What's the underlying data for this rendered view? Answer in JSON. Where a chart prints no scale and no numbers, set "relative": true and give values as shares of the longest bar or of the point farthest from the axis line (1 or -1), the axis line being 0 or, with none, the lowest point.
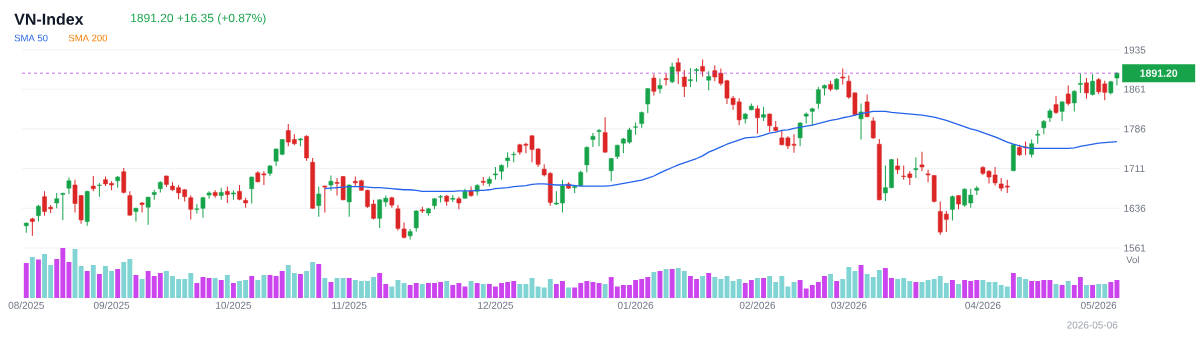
{
  "chart_data": [
    {
      "type": "candlestick",
      "title": "VN-Index",
      "subtitle": "1891.20 +16.35 (+0.87%)",
      "categories": [
        null,
        null,
        null,
        null,
        null,
        null,
        null,
        null,
        null,
        null,
        null,
        null,
        null,
        null,
        null,
        null,
        null,
        null,
        null,
        null,
        null,
        null,
        null,
        null,
        null,
        null,
        null,
        null,
        null,
        null,
        null,
        null,
        null,
        null,
        null,
        null,
        null,
        null,
        null,
        null,
        null,
        null,
        null,
        null,
        null,
        null,
        null,
        null,
        null,
        null,
        null,
        null,
        null,
        null,
        null,
        null,
        null,
        null,
        null,
        null,
        null,
        null,
        null,
        null,
        null,
        null,
        null,
        null,
        null,
        null,
        null,
        null,
        null,
        null,
        null,
        null,
        null,
        null,
        null,
        null,
        null,
        null,
        null,
        null,
        null,
        null,
        null,
        null,
        null,
        null,
        null,
        null,
        null,
        null,
        null,
        null,
        null,
        null,
        null,
        null,
        null,
        null,
        null,
        null,
        null,
        null,
        null,
        null,
        null,
        null,
        null,
        null,
        null,
        null,
        null,
        null,
        null,
        null,
        null,
        null,
        null,
        null,
        null,
        null,
        null,
        null,
        null,
        null,
        null,
        null,
        null,
        null,
        null,
        null,
        null,
        null,
        null,
        null,
        null,
        null,
        null,
        null,
        null,
        null,
        null,
        null,
        null,
        null,
        null,
        null,
        null,
        null,
        null,
        null,
        null,
        null,
        null,
        null,
        null,
        null,
        null,
        null,
        null,
        null,
        null,
        null,
        null,
        null,
        null,
        null,
        null,
        null,
        null,
        null,
        null,
        null,
        null,
        null,
        null,
        null
      ],
      "ohlc": [
        [
          1603,
          1609,
          1590,
          1608
        ],
        [
          1616,
          1618,
          1584,
          1611
        ],
        [
          1622,
          1642,
          1611,
          1640
        ],
        [
          1658,
          1668,
          1622,
          1630
        ],
        [
          1638,
          1642,
          1627,
          1635
        ],
        [
          1646,
          1665,
          1636,
          1654
        ],
        [
          1662,
          1666,
          1614,
          1664
        ],
        [
          1674,
          1694,
          1663,
          1688
        ],
        [
          1680,
          1690,
          1628,
          1645
        ],
        [
          1660,
          1661,
          1607,
          1614
        ],
        [
          1611,
          1669,
          1603,
          1668
        ],
        [
          1678,
          1697,
          1668,
          1673
        ],
        [
          1679,
          1684,
          1658,
          1680
        ],
        [
          1690,
          1696,
          1678,
          1682
        ],
        [
          1683,
          1687,
          1670,
          1680
        ],
        [
          1688,
          1697,
          1675,
          1695
        ],
        [
          1705,
          1712,
          1664,
          1666
        ],
        [
          1660,
          1668,
          1622,
          1623
        ],
        [
          1630,
          1637,
          1611,
          1636
        ],
        [
          1646,
          1648,
          1628,
          1643
        ],
        [
          1638,
          1658,
          1605,
          1657
        ],
        [
          1662,
          1671,
          1652,
          1666
        ],
        [
          1673,
          1687,
          1666,
          1685
        ],
        [
          1697,
          1698,
          1676,
          1681
        ],
        [
          1678,
          1685,
          1669,
          1671
        ],
        [
          1675,
          1680,
          1653,
          1665
        ],
        [
          1671,
          1672,
          1649,
          1658
        ],
        [
          1656,
          1660,
          1615,
          1634
        ],
        [
          1634,
          1644,
          1626,
          1635
        ],
        [
          1636,
          1658,
          1618,
          1656
        ],
        [
          1661,
          1668,
          1654,
          1665
        ],
        [
          1666,
          1670,
          1656,
          1660
        ],
        [
          1660,
          1675,
          1652,
          1666
        ],
        [
          1668,
          1677,
          1646,
          1662
        ],
        [
          1663,
          1670,
          1652,
          1665
        ],
        [
          1668,
          1680,
          1651,
          1653
        ],
        [
          1651,
          1656,
          1637,
          1646
        ],
        [
          1673,
          1696,
          1645,
          1695
        ],
        [
          1703,
          1706,
          1685,
          1686
        ],
        [
          1701,
          1706,
          1680,
          1699
        ],
        [
          1702,
          1718,
          1697,
          1716
        ],
        [
          1725,
          1749,
          1716,
          1748
        ],
        [
          1738,
          1767,
          1736,
          1766
        ],
        [
          1783,
          1795,
          1753,
          1761
        ],
        [
          1766,
          1776,
          1755,
          1758
        ],
        [
          1765,
          1769,
          1753,
          1767
        ],
        [
          1772,
          1774,
          1726,
          1731
        ],
        [
          1723,
          1731,
          1635,
          1636
        ],
        [
          1641,
          1677,
          1620,
          1663
        ],
        [
          1678,
          1679,
          1628,
          1676
        ],
        [
          1680,
          1698,
          1669,
          1687
        ],
        [
          1685,
          1693,
          1660,
          1683
        ],
        [
          1696,
          1697,
          1651,
          1652
        ],
        [
          1648,
          1681,
          1620,
          1680
        ],
        [
          1687,
          1696,
          1676,
          1684
        ],
        [
          1688,
          1690,
          1669,
          1670
        ],
        [
          1670,
          1671,
          1637,
          1639
        ],
        [
          1644,
          1652,
          1615,
          1617
        ],
        [
          1617,
          1653,
          1599,
          1652
        ],
        [
          1648,
          1660,
          1639,
          1655
        ],
        [
          1656,
          1658,
          1637,
          1642
        ],
        [
          1635,
          1642,
          1594,
          1598
        ],
        [
          1597,
          1609,
          1579,
          1581
        ],
        [
          1584,
          1597,
          1577,
          1592
        ],
        [
          1599,
          1632,
          1592,
          1631
        ],
        [
          1633,
          1639,
          1627,
          1631
        ],
        [
          1627,
          1637,
          1622,
          1635
        ],
        [
          1641,
          1655,
          1634,
          1654
        ],
        [
          1657,
          1661,
          1647,
          1658
        ],
        [
          1659,
          1661,
          1641,
          1649
        ],
        [
          1653,
          1661,
          1648,
          1655
        ],
        [
          1654,
          1658,
          1634,
          1646
        ],
        [
          1655,
          1673,
          1654,
          1668
        ],
        [
          1669,
          1677,
          1658,
          1660
        ],
        [
          1668,
          1682,
          1660,
          1679
        ],
        [
          1687,
          1695,
          1679,
          1685
        ],
        [
          1683,
          1696,
          1677,
          1691
        ],
        [
          1699,
          1714,
          1690,
          1701
        ],
        [
          1706,
          1719,
          1690,
          1717
        ],
        [
          1726,
          1742,
          1713,
          1731
        ],
        [
          1737,
          1743,
          1723,
          1738
        ],
        [
          1756,
          1758,
          1737,
          1742
        ],
        [
          1757,
          1760,
          1740,
          1755
        ],
        [
          1773,
          1774,
          1723,
          1747
        ],
        [
          1748,
          1750,
          1714,
          1719
        ],
        [
          1710,
          1719,
          1696,
          1699
        ],
        [
          1702,
          1704,
          1641,
          1647
        ],
        [
          1644,
          1668,
          1642,
          1646
        ],
        [
          1646,
          1690,
          1628,
          1678
        ],
        [
          1682,
          1685,
          1673,
          1674
        ],
        [
          1675,
          1679,
          1665,
          1677
        ],
        [
          1679,
          1707,
          1678,
          1704
        ],
        [
          1718,
          1753,
          1704,
          1751
        ],
        [
          1766,
          1778,
          1752,
          1772
        ],
        [
          1781,
          1786,
          1753,
          1783
        ],
        [
          1779,
          1808,
          1741,
          1742
        ],
        [
          1707,
          1731,
          1687,
          1730
        ],
        [
          1734,
          1756,
          1729,
          1755
        ],
        [
          1759,
          1769,
          1740,
          1767
        ],
        [
          1761,
          1788,
          1758,
          1784
        ],
        [
          1789,
          1798,
          1775,
          1790
        ],
        [
          1796,
          1819,
          1788,
          1817
        ],
        [
          1833,
          1863,
          1816,
          1862
        ],
        [
          1882,
          1889,
          1849,
          1857
        ],
        [
          1862,
          1881,
          1853,
          1868
        ],
        [
          1881,
          1890,
          1868,
          1879
        ],
        [
          1875,
          1911,
          1872,
          1903
        ],
        [
          1911,
          1920,
          1871,
          1895
        ],
        [
          1884,
          1897,
          1846,
          1866
        ],
        [
          1877,
          1901,
          1865,
          1879
        ],
        [
          1896,
          1901,
          1875,
          1898
        ],
        [
          1904,
          1917,
          1885,
          1895
        ],
        [
          1878,
          1895,
          1859,
          1885
        ],
        [
          1896,
          1906,
          1876,
          1884
        ],
        [
          1891,
          1900,
          1868,
          1872
        ],
        [
          1877,
          1879,
          1833,
          1844
        ],
        [
          1844,
          1848,
          1822,
          1832
        ],
        [
          1837,
          1844,
          1793,
          1803
        ],
        [
          1805,
          1816,
          1796,
          1814
        ],
        [
          1822,
          1834,
          1821,
          1829
        ],
        [
          1824,
          1830,
          1777,
          1807
        ],
        [
          1808,
          1828,
          1801,
          1813
        ],
        [
          1814,
          1815,
          1780,
          1792
        ],
        [
          1789,
          1801,
          1781,
          1783
        ],
        [
          1769,
          1783,
          1755,
          1756
        ],
        [
          1769,
          1772,
          1748,
          1754
        ],
        [
          1757,
          1776,
          1741,
          1755
        ],
        [
          1769,
          1799,
          1753,
          1797
        ],
        [
          1810,
          1817,
          1796,
          1814
        ],
        [
          1819,
          1826,
          1792,
          1824
        ],
        [
          1834,
          1865,
          1824,
          1860
        ],
        [
          1863,
          1870,
          1849,
          1868
        ],
        [
          1870,
          1877,
          1857,
          1861
        ],
        [
          1861,
          1882,
          1859,
          1880
        ],
        [
          1884,
          1900,
          1870,
          1882
        ],
        [
          1876,
          1887,
          1843,
          1846
        ],
        [
          1854,
          1855,
          1811,
          1813
        ],
        [
          1805,
          1834,
          1766,
          1818
        ],
        [
          1837,
          1851,
          1808,
          1809
        ],
        [
          1801,
          1808,
          1767,
          1769
        ],
        [
          1757,
          1767,
          1651,
          1652
        ],
        [
          1665,
          1717,
          1650,
          1675
        ],
        [
          1675,
          1729,
          1674,
          1728
        ],
        [
          1716,
          1730,
          1701,
          1709
        ],
        [
          1697,
          1717,
          1690,
          1696
        ],
        [
          1701,
          1706,
          1680,
          1694
        ],
        [
          1709,
          1732,
          1693,
          1711
        ],
        [
          1718,
          1743,
          1706,
          1714
        ],
        [
          1701,
          1709,
          1685,
          1699
        ],
        [
          1698,
          1699,
          1647,
          1649
        ],
        [
          1630,
          1649,
          1586,
          1591
        ],
        [
          1625,
          1631,
          1591,
          1615
        ],
        [
          1634,
          1660,
          1613,
          1658
        ],
        [
          1660,
          1661,
          1634,
          1644
        ],
        [
          1642,
          1674,
          1639,
          1672
        ],
        [
          1646,
          1673,
          1637,
          1661
        ],
        [
          1670,
          1678,
          1661,
          1674
        ],
        [
          1713,
          1716,
          1699,
          1702
        ],
        [
          1706,
          1708,
          1683,
          1695
        ],
        [
          1699,
          1714,
          1679,
          1684
        ],
        [
          1682,
          1693,
          1668,
          1674
        ],
        [
          1678,
          1690,
          1665,
          1676
        ],
        [
          1707,
          1757,
          1706,
          1756
        ],
        [
          1751,
          1756,
          1735,
          1737
        ],
        [
          1752,
          1762,
          1736,
          1750
        ],
        [
          1738,
          1766,
          1732,
          1758
        ],
        [
          1774,
          1784,
          1758,
          1776
        ],
        [
          1788,
          1803,
          1776,
          1800
        ],
        [
          1807,
          1824,
          1799,
          1820
        ],
        [
          1832,
          1848,
          1814,
          1817
        ],
        [
          1819,
          1838,
          1801,
          1837
        ],
        [
          1852,
          1868,
          1830,
          1834
        ],
        [
          1835,
          1859,
          1819,
          1857
        ],
        [
          1870,
          1890,
          1854,
          1872
        ],
        [
          1873,
          1882,
          1843,
          1854
        ],
        [
          1851,
          1889,
          1849,
          1876
        ],
        [
          1879,
          1882,
          1852,
          1856
        ],
        [
          1871,
          1877,
          1840,
          1855
        ],
        [
          1854,
          1877,
          1851,
          1875
        ],
        [
          1882,
          1893,
          1868,
          1891.2
        ]
      ],
      "series": [
        {
          "name": "SMA 50",
          "type": "line",
          "color": "#2563eb",
          "values": [
            null,
            null,
            null,
            null,
            null,
            null,
            null,
            null,
            null,
            null,
            null,
            null,
            null,
            null,
            null,
            null,
            null,
            null,
            null,
            null,
            null,
            null,
            null,
            null,
            null,
            null,
            null,
            null,
            null,
            null,
            null,
            null,
            null,
            null,
            null,
            null,
            null,
            null,
            null,
            null,
            null,
            null,
            null,
            null,
            null,
            null,
            null,
            null,
            null,
            1673,
            1674,
            1675,
            1676,
            1677,
            1677,
            1677,
            1676,
            1675,
            1675,
            1674,
            1673,
            1672,
            1671,
            1671,
            1670,
            1668,
            1668,
            1668,
            1668,
            1668,
            1668,
            1669,
            1669,
            1669,
            1670,
            1670,
            1671,
            1673,
            1674,
            1675,
            1677,
            1678,
            1679,
            1681,
            1682,
            1682,
            1681,
            1680,
            1680,
            1680,
            1679,
            1678,
            1678,
            1678,
            1678,
            1678,
            1679,
            1681,
            1683,
            1685,
            1687,
            1689,
            1693,
            1697,
            1703,
            1708,
            1713,
            1718,
            1722,
            1726,
            1730,
            1735,
            1742,
            1747,
            1752,
            1757,
            1761,
            1765,
            1769,
            1770,
            1771,
            1774,
            1778,
            1780,
            1783,
            1784,
            1787,
            1789,
            1791,
            1793,
            1796,
            1799,
            1802,
            1804,
            1807,
            1809,
            1812,
            1815,
            1817,
            1819,
            1819,
            1819,
            1817,
            1816,
            1815,
            1814,
            1813,
            1812,
            1810,
            1808,
            1805,
            1802,
            1798,
            1794,
            1790,
            1786,
            1783,
            1779,
            1775,
            1771,
            1766,
            1761,
            1757,
            1754,
            1751,
            1749,
            1749,
            1749,
            1749,
            1749,
            1749,
            1749,
            1750,
            1753,
            1755,
            1757,
            1759,
            1760,
            1761,
            1762
          ]
        },
        {
          "name": "SMA 200",
          "type": "line",
          "color": "#f57c00",
          "values": [
            null,
            null,
            null,
            null,
            null,
            null,
            null,
            null,
            null,
            null,
            null,
            null,
            null,
            null,
            null,
            null,
            null,
            null,
            null,
            null,
            null,
            null,
            null,
            null,
            null,
            null,
            null,
            null,
            null,
            null,
            null,
            null,
            null,
            null,
            null,
            null,
            null,
            null,
            null,
            null,
            null,
            null,
            null,
            null,
            null,
            null,
            null,
            null,
            null,
            null,
            null,
            null,
            null,
            null,
            null,
            null,
            null,
            null,
            null,
            null,
            null,
            null,
            null,
            null,
            null,
            null,
            null,
            null,
            null,
            null,
            null,
            null,
            null,
            null,
            null,
            null,
            null,
            null,
            null,
            null,
            null,
            null,
            null,
            null,
            null,
            null,
            null,
            null,
            null,
            null,
            null,
            null,
            null,
            null,
            null,
            null,
            null,
            null,
            null,
            null,
            null,
            null,
            null,
            null,
            null,
            null,
            null,
            null,
            null,
            null,
            null,
            null,
            null,
            null,
            null,
            null,
            null,
            null,
            null,
            null,
            null,
            null,
            null,
            null,
            null,
            null,
            null,
            null,
            null,
            null,
            null,
            null,
            null,
            null,
            null,
            null,
            null,
            null,
            null,
            null,
            null,
            null,
            null,
            null,
            null,
            null,
            null,
            null,
            null,
            null,
            null,
            null,
            null,
            null,
            null,
            null,
            null,
            null,
            null,
            null,
            null,
            null,
            null,
            null,
            null,
            null,
            null,
            null,
            null,
            null,
            null,
            null,
            null,
            null,
            null,
            null,
            null,
            null,
            null,
            null
          ]
        }
      ],
      "ylim": [
        1561,
        1935
      ],
      "yticks": [
        1561,
        1636,
        1711,
        1786,
        1861,
        1935
      ],
      "grid": "y",
      "legend": "top left",
      "tick_labels": "y",
      "ref_lines": [
        {
          "axis": "y",
          "value": 1891.2,
          "label": "1891.20",
          "color": "#b030e0",
          "line_style": "dashed"
        }
      ]
    },
    {
      "type": "bar",
      "relative": true,
      "ylabel": "Vol",
      "tick_labels": "x",
      "annotations": [
        "2026-05-06"
      ],
      "categories": [
        "08/2025",
        null,
        null,
        null,
        null,
        null,
        null,
        null,
        null,
        null,
        null,
        null,
        null,
        null,
        "09/2025",
        null,
        null,
        null,
        null,
        null,
        null,
        null,
        null,
        null,
        null,
        null,
        null,
        null,
        null,
        null,
        null,
        null,
        null,
        null,
        "10/2025",
        null,
        null,
        null,
        null,
        null,
        null,
        null,
        null,
        null,
        null,
        null,
        null,
        null,
        null,
        null,
        null,
        null,
        null,
        "11/2025",
        null,
        null,
        null,
        null,
        null,
        null,
        null,
        null,
        null,
        null,
        null,
        null,
        null,
        null,
        null,
        null,
        null,
        null,
        null,
        null,
        null,
        null,
        null,
        "12/2025",
        null,
        null,
        null,
        null,
        null,
        null,
        null,
        null,
        null,
        null,
        null,
        null,
        null,
        null,
        null,
        null,
        null,
        null,
        null,
        null,
        null,
        null,
        "01/2026",
        null,
        null,
        null,
        null,
        null,
        null,
        null,
        null,
        null,
        null,
        null,
        null,
        null,
        null,
        null,
        null,
        null,
        null,
        null,
        "02/2026",
        null,
        null,
        null,
        null,
        null,
        null,
        null,
        null,
        null,
        null,
        null,
        null,
        null,
        null,
        "03/2026",
        null,
        null,
        null,
        null,
        null,
        null,
        null,
        null,
        null,
        null,
        null,
        null,
        null,
        null,
        null,
        null,
        null,
        null,
        null,
        null,
        null,
        "04/2026",
        null,
        null,
        null,
        null,
        null,
        null,
        null,
        null,
        null,
        null,
        null,
        null,
        null,
        null,
        null,
        null,
        null,
        null,
        "05/2026",
        null,
        null,
        null
      ],
      "values": [
        0.7,
        0.82,
        0.77,
        0.88,
        0.66,
        0.78,
        1.0,
        0.72,
        0.98,
        0.64,
        0.54,
        0.66,
        0.48,
        0.64,
        0.54,
        0.58,
        0.72,
        0.78,
        0.46,
        0.38,
        0.54,
        0.44,
        0.5,
        0.54,
        0.44,
        0.38,
        0.38,
        0.5,
        0.3,
        0.42,
        0.4,
        0.4,
        0.36,
        0.46,
        0.3,
        0.34,
        0.36,
        0.44,
        0.36,
        0.46,
        0.46,
        0.44,
        0.54,
        0.66,
        0.5,
        0.48,
        0.54,
        0.72,
        0.68,
        0.4,
        0.32,
        0.4,
        0.4,
        0.4,
        0.36,
        0.34,
        0.34,
        0.42,
        0.5,
        0.28,
        0.23,
        0.36,
        0.3,
        0.26,
        0.3,
        0.28,
        0.3,
        0.3,
        0.32,
        0.34,
        0.26,
        0.3,
        0.23,
        0.34,
        0.3,
        0.28,
        0.28,
        0.23,
        0.3,
        0.32,
        0.34,
        0.28,
        0.28,
        0.4,
        0.23,
        0.21,
        0.38,
        0.28,
        0.34,
        0.21,
        0.21,
        0.3,
        0.34,
        0.32,
        0.3,
        0.28,
        0.42,
        0.23,
        0.26,
        0.26,
        0.36,
        0.38,
        0.42,
        0.52,
        0.54,
        0.58,
        0.58,
        0.6,
        0.54,
        0.44,
        0.38,
        0.44,
        0.5,
        0.42,
        0.38,
        0.44,
        0.34,
        0.38,
        0.3,
        0.36,
        0.4,
        0.4,
        0.44,
        0.32,
        0.44,
        0.23,
        0.32,
        0.36,
        0.19,
        0.26,
        0.32,
        0.44,
        0.48,
        0.34,
        0.38,
        0.62,
        0.54,
        0.66,
        0.48,
        0.42,
        0.56,
        0.6,
        0.4,
        0.38,
        0.4,
        0.34,
        0.32,
        0.32,
        0.36,
        0.38,
        0.44,
        0.3,
        0.36,
        0.28,
        0.36,
        0.34,
        0.36,
        0.36,
        0.32,
        0.32,
        0.26,
        0.23,
        0.5,
        0.42,
        0.38,
        0.34,
        0.34,
        0.36,
        0.36,
        0.28,
        0.26,
        0.34,
        0.26,
        0.42,
        0.26,
        0.26,
        0.28,
        0.28,
        0.32,
        0.36
      ],
      "colors": [
        "#cc44ee",
        "#80d4d4",
        "#cc44ee",
        "#80d4d4",
        "#80d4d4",
        "#cc44ee",
        "#cc44ee",
        "#cc44ee",
        "#80d4d4",
        "#80d4d4",
        "#cc44ee",
        "#80d4d4",
        "#cc44ee",
        "#80d4d4",
        "#80d4d4",
        "#cc44ee",
        "#80d4d4",
        "#80d4d4",
        "#cc44ee",
        "#80d4d4",
        "#cc44ee",
        "#cc44ee",
        "#cc44ee",
        "#80d4d4",
        "#80d4d4",
        "#80d4d4",
        "#80d4d4",
        "#80d4d4",
        "#cc44ee",
        "#cc44ee",
        "#cc44ee",
        "#80d4d4",
        "#cc44ee",
        "#80d4d4",
        "#cc44ee",
        "#80d4d4",
        "#80d4d4",
        "#cc44ee",
        "#80d4d4",
        "#80d4d4",
        "#cc44ee",
        "#cc44ee",
        "#cc44ee",
        "#80d4d4",
        "#80d4d4",
        "#cc44ee",
        "#80d4d4",
        "#80d4d4",
        "#cc44ee",
        "#80d4d4",
        "#cc44ee",
        "#80d4d4",
        "#80d4d4",
        "#cc44ee",
        "#80d4d4",
        "#80d4d4",
        "#80d4d4",
        "#80d4d4",
        "#cc44ee",
        "#cc44ee",
        "#80d4d4",
        "#80d4d4",
        "#80d4d4",
        "#cc44ee",
        "#cc44ee",
        "#80d4d4",
        "#cc44ee",
        "#cc44ee",
        "#cc44ee",
        "#80d4d4",
        "#cc44ee",
        "#cc44ee",
        "#cc44ee",
        "#80d4d4",
        "#cc44ee",
        "#80d4d4",
        "#cc44ee",
        "#cc44ee",
        "#cc44ee",
        "#cc44ee",
        "#cc44ee",
        "#80d4d4",
        "#80d4d4",
        "#80d4d4",
        "#80d4d4",
        "#80d4d4",
        "#80d4d4",
        "#cc44ee",
        "#cc44ee",
        "#80d4d4",
        "#cc44ee",
        "#cc44ee",
        "#cc44ee",
        "#cc44ee",
        "#cc44ee",
        "#80d4d4",
        "#cc44ee",
        "#cc44ee",
        "#cc44ee",
        "#cc44ee",
        "#cc44ee",
        "#cc44ee",
        "#cc44ee",
        "#80d4d4",
        "#cc44ee",
        "#80d4d4",
        "#cc44ee",
        "#80d4d4",
        "#80d4d4",
        "#cc44ee",
        "#cc44ee",
        "#80d4d4",
        "#cc44ee",
        "#80d4d4",
        "#80d4d4",
        "#80d4d4",
        "#80d4d4",
        "#80d4d4",
        "#cc44ee",
        "#cc44ee",
        "#80d4d4",
        "#cc44ee",
        "#80d4d4",
        "#80d4d4",
        "#80d4d4",
        "#80d4d4",
        "#80d4d4",
        "#cc44ee",
        "#cc44ee",
        "#cc44ee",
        "#cc44ee",
        "#cc44ee",
        "#80d4d4",
        "#cc44ee",
        "#80d4d4",
        "#80d4d4",
        "#80d4d4",
        "#cc44ee",
        "#80d4d4",
        "#80d4d4",
        "#80d4d4",
        "#cc44ee",
        "#cc44ee",
        "#80d4d4",
        "#80d4d4",
        "#80d4d4",
        "#cc44ee",
        "#80d4d4",
        "#80d4d4",
        "#80d4d4",
        "#80d4d4",
        "#80d4d4",
        "#cc44ee",
        "#80d4d4",
        "#cc44ee",
        "#cc44ee",
        "#cc44ee",
        "#80d4d4",
        "#80d4d4",
        "#80d4d4",
        "#80d4d4",
        "#80d4d4",
        "#cc44ee",
        "#80d4d4",
        "#80d4d4",
        "#cc44ee",
        "#cc44ee",
        "#cc44ee",
        "#cc44ee",
        "#80d4d4",
        "#cc44ee",
        "#80d4d4",
        "#cc44ee",
        "#cc44ee",
        "#80d4d4",
        "#cc44ee",
        "#80d4d4",
        "#80d4d4",
        "#cc44ee",
        "#cc44ee"
      ]
    }
  ]
}
